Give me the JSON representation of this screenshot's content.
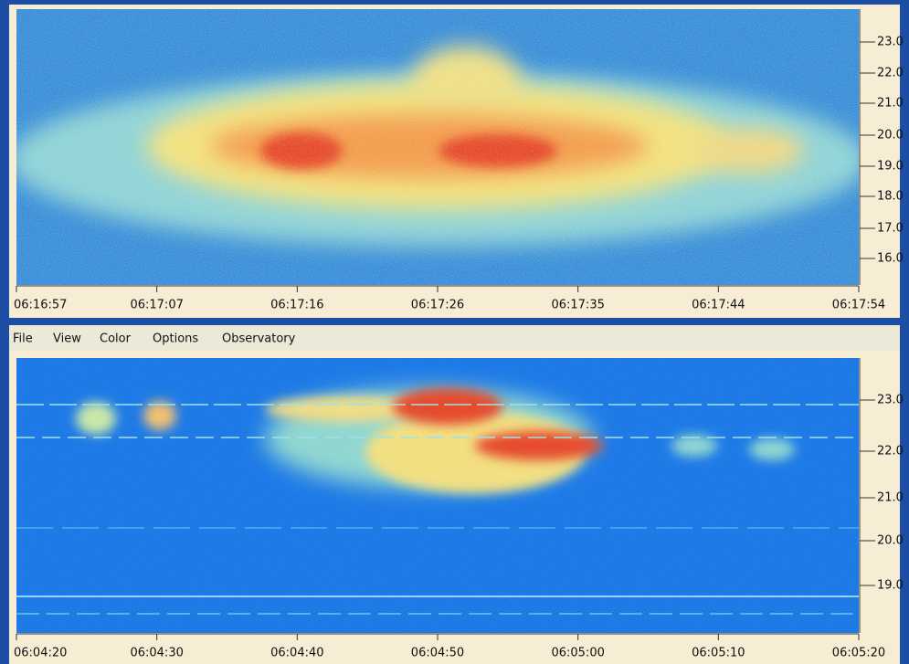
{
  "menu": [
    "File",
    "View",
    "Color",
    "Options",
    "Observatory"
  ],
  "panels": [
    {
      "x_labels": [
        "06:16:57",
        "06:17:07",
        "06:17:16",
        "06:17:26",
        "06:17:35",
        "06:17:44",
        "06:17:54"
      ],
      "y_labels": [
        "23.0",
        "22.0",
        "21.0",
        "20.0",
        "19.0",
        "18.0",
        "17.0",
        "16.0"
      ]
    },
    {
      "x_labels": [
        "06:04:20",
        "06:04:30",
        "06:04:40",
        "06:04:50",
        "06:05:00",
        "06:05:10",
        "06:05:20"
      ],
      "y_labels": [
        "23.0",
        "22.0",
        "21.0",
        "20.0",
        "19.0"
      ]
    }
  ]
}
